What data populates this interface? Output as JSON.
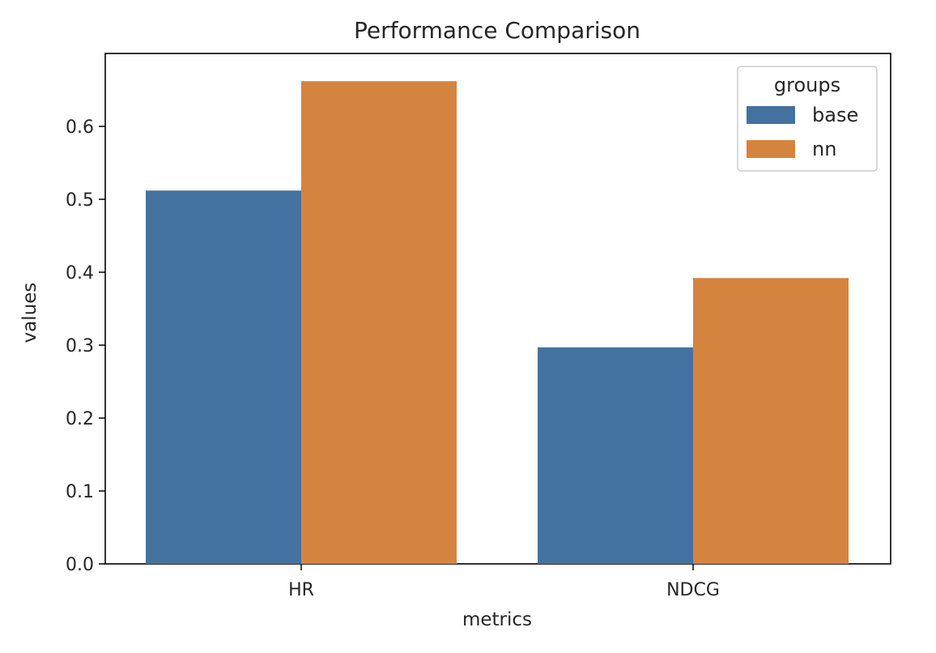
{
  "chart_data": {
    "type": "bar",
    "title": "Performance Comparison",
    "xlabel": "metrics",
    "ylabel": "values",
    "categories": [
      "HR",
      "NDCG"
    ],
    "series": [
      {
        "name": "base",
        "values": [
          0.512,
          0.297
        ],
        "color": "#4472a0"
      },
      {
        "name": "nn",
        "values": [
          0.662,
          0.392
        ],
        "color": "#d5843f"
      }
    ],
    "ylim": [
      0,
      0.7
    ],
    "yticks": [
      0.0,
      0.1,
      0.2,
      0.3,
      0.4,
      0.5,
      0.6
    ],
    "ytick_labels": [
      "0.0",
      "0.1",
      "0.2",
      "0.3",
      "0.4",
      "0.5",
      "0.6"
    ],
    "grid": false,
    "legend": {
      "title": "groups",
      "placement": "top-right"
    }
  }
}
